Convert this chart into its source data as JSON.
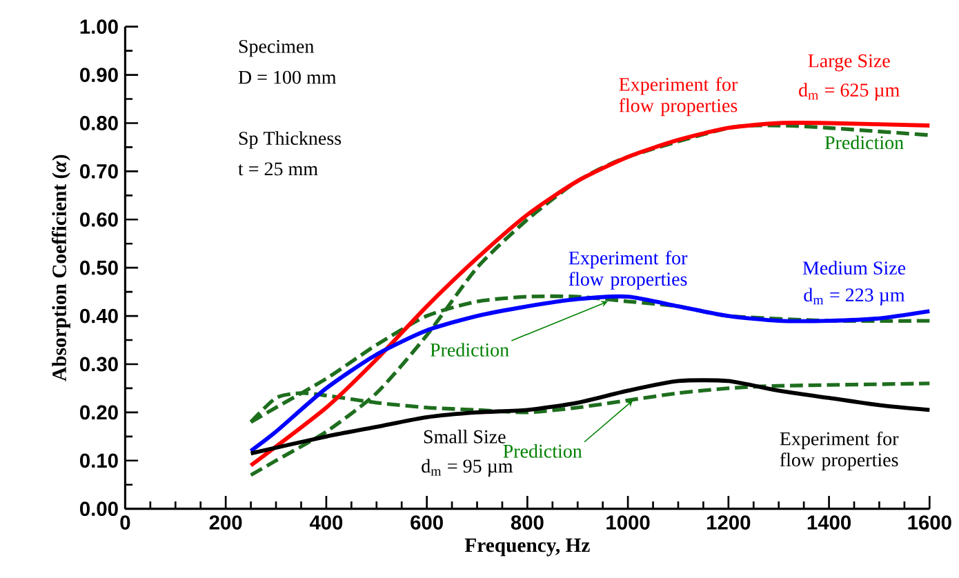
{
  "chart_data": {
    "type": "line",
    "xlabel": "Frequency, Hz",
    "ylabel": "Absorption Coefficient (*α*)",
    "xlim": [
      0,
      1600
    ],
    "xticks": [
      0,
      200,
      400,
      600,
      800,
      1000,
      1200,
      1400,
      1600
    ],
    "ylim": [
      0,
      1
    ],
    "yticks": [
      {
        "value": 0,
        "label": "0.00"
      },
      {
        "value": 0.1,
        "label": "0.10"
      },
      {
        "value": 0.2,
        "label": "0.20"
      },
      {
        "value": 0.3,
        "label": "0.30"
      },
      {
        "value": 0.4,
        "label": "0.40"
      },
      {
        "value": 0.5,
        "label": "0.50"
      },
      {
        "value": 0.6,
        "label": "0.60"
      },
      {
        "value": 0.7,
        "label": "0.70"
      },
      {
        "value": 0.8,
        "label": "0.80"
      },
      {
        "value": 0.9,
        "label": "0.90"
      },
      {
        "value": 1,
        "label": "1.00"
      }
    ],
    "marker": "none",
    "series": [
      {
        "color": "#1e6e1e",
        "line_style": "dashed",
        "x": [
          250,
          300,
          400,
          500,
          600,
          700,
          800,
          900,
          1000,
          1200,
          1300,
          1400,
          1600
        ],
        "values": [
          0.07,
          0.1,
          0.16,
          0.24,
          0.36,
          0.5,
          0.6,
          0.68,
          0.73,
          0.79,
          0.795,
          0.79,
          0.775
        ]
      },
      {
        "color": "#1e6e1e",
        "line_style": "dashed",
        "x": [
          250,
          300,
          400,
          500,
          600,
          700,
          800,
          900,
          1000,
          1100,
          1200,
          1400,
          1600
        ],
        "values": [
          0.18,
          0.21,
          0.27,
          0.34,
          0.4,
          0.43,
          0.44,
          0.44,
          0.43,
          0.42,
          0.4,
          0.39,
          0.39
        ]
      },
      {
        "color": "#1e6e1e",
        "line_style": "dashed",
        "x": [
          250,
          300,
          350,
          400,
          500,
          600,
          700,
          800,
          900,
          1000,
          1100,
          1200,
          1300,
          1600
        ],
        "values": [
          0.18,
          0.23,
          0.24,
          0.235,
          0.22,
          0.21,
          0.205,
          0.2,
          0.21,
          0.225,
          0.24,
          0.25,
          0.255,
          0.26
        ]
      },
      {
        "color": "#ff0000",
        "line_style": "solid",
        "x": [
          250,
          400,
          500,
          600,
          700,
          800,
          900,
          1000,
          1100,
          1200,
          1300,
          1400,
          1600
        ],
        "values": [
          0.09,
          0.21,
          0.31,
          0.42,
          0.52,
          0.61,
          0.68,
          0.73,
          0.765,
          0.79,
          0.8,
          0.8,
          0.795
        ]
      },
      {
        "color": "#0000ff",
        "line_style": "solid",
        "x": [
          250,
          300,
          400,
          500,
          600,
          700,
          800,
          900,
          1000,
          1100,
          1200,
          1300,
          1400,
          1500,
          1600
        ],
        "values": [
          0.12,
          0.16,
          0.25,
          0.32,
          0.37,
          0.4,
          0.42,
          0.435,
          0.44,
          0.42,
          0.4,
          0.39,
          0.39,
          0.395,
          0.41
        ]
      },
      {
        "color": "#000000",
        "line_style": "solid",
        "x": [
          250,
          400,
          500,
          600,
          700,
          800,
          900,
          1000,
          1100,
          1200,
          1300,
          1400,
          1500,
          1600
        ],
        "values": [
          0.115,
          0.15,
          0.17,
          0.19,
          0.2,
          0.205,
          0.22,
          0.245,
          0.265,
          0.265,
          0.245,
          0.23,
          0.215,
          0.205
        ]
      }
    ],
    "annotations": [
      "Specimen",
      "D = 100 mm",
      "Sp Thickness",
      "t = 25 mm",
      "Large Size",
      "d$_{m}$ = 625 µm",
      "Experiment for flow properties",
      "Prediction",
      "Experiment for flow properties",
      "Medium Size",
      "d$_{m}$ = 223 µm",
      {
        "text": "Prediction",
        "x": 960,
        "y": 0.43
      },
      "Small Size",
      "d$_{m}$ = 95 µm",
      {
        "text": "Prediction",
        "x": 1010,
        "y": 0.225
      },
      "Experiment for flow properties"
    ]
  }
}
